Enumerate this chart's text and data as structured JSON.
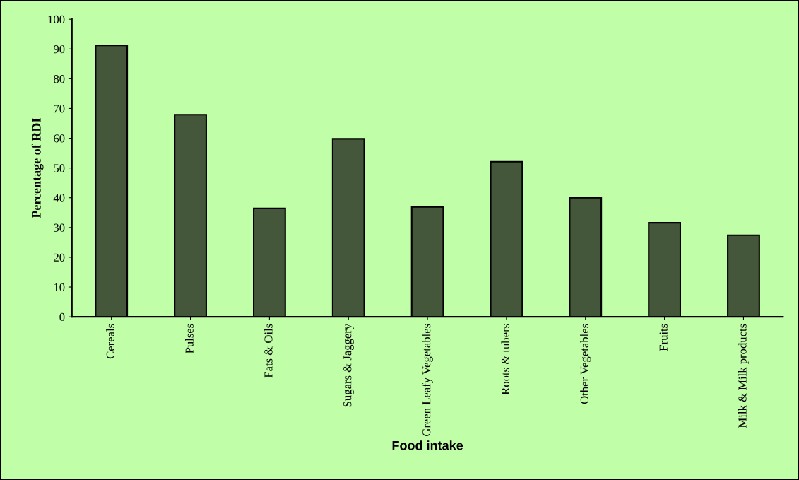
{
  "chart_data": {
    "type": "bar",
    "categories": [
      "Cereals",
      "Pulses",
      "Fats & Oils",
      "Sugars & Jaggery",
      "Green Leafy Vegetables",
      "Roots & tubers",
      "Other Vegetables",
      "Fruits",
      "Milk & Milk products"
    ],
    "values": [
      91.2,
      67.9,
      36.4,
      59.8,
      36.9,
      52.1,
      40.0,
      31.6,
      27.4
    ],
    "color": "#45573a",
    "xlabel": "Food intake",
    "ylabel": "Percentage of RDI",
    "ylim": [
      0,
      100
    ],
    "yticks": [
      0,
      10,
      20,
      30,
      40,
      50,
      60,
      70,
      80,
      90,
      100
    ],
    "grid": false,
    "legend": false
  }
}
